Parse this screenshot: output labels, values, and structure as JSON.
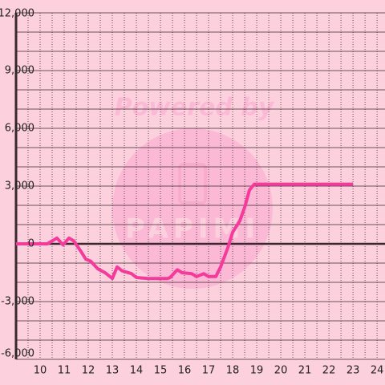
{
  "chart_data": {
    "type": "line",
    "watermark": {
      "top": "Powered by",
      "bottom": "PAPIMI"
    },
    "x": [
      9,
      10.3,
      10.7,
      10.95,
      11.2,
      11.4,
      11.7,
      11.9,
      12.1,
      12.4,
      12.7,
      13,
      13.2,
      13.4,
      13.8,
      14,
      14.5,
      15.3,
      15.4,
      15.7,
      15.9,
      16.3,
      16.5,
      16.8,
      17,
      17.3,
      17.5,
      17.8,
      18,
      18.3,
      18.5,
      18.7,
      18.9,
      19.2,
      23
    ],
    "series": [
      {
        "color": "#f53a9b",
        "values": [
          0,
          0,
          300,
          -50,
          300,
          150,
          -400,
          -800,
          -900,
          -1300,
          -1500,
          -1800,
          -1200,
          -1400,
          -1550,
          -1750,
          -1800,
          -1800,
          -1750,
          -1350,
          -1500,
          -1550,
          -1700,
          -1550,
          -1700,
          -1700,
          -1200,
          -200,
          600,
          1200,
          1900,
          2800,
          3100,
          3100,
          3100
        ]
      }
    ],
    "xlim": [
      9,
      24.33
    ],
    "xticks": [
      10,
      11,
      12,
      13,
      14,
      15,
      16,
      17,
      18,
      19,
      20,
      21,
      22,
      23,
      24
    ],
    "minor_xticks": [
      9.5,
      10.5,
      11.5,
      12.5,
      13.5,
      14.5,
      15.5,
      16.5,
      17.5,
      18.5,
      19.5,
      20.5,
      21.5,
      22.5,
      23.5
    ],
    "ylim": [
      -6000,
      12000
    ],
    "yticks": [
      {
        "value": -6000,
        "label": "-6,000"
      },
      {
        "value": -3000,
        "label": "-3,000"
      },
      0,
      {
        "value": 3000,
        "label": "3,000"
      },
      {
        "value": 6000,
        "label": "6,000"
      },
      {
        "value": 9000,
        "label": "9,000"
      },
      {
        "value": 12000,
        "label": "12,000"
      }
    ],
    "minor_yticks": [
      -5000,
      -4000,
      -2000,
      -1000,
      1000,
      2000,
      4000,
      5000,
      7000,
      8000,
      10000,
      11000
    ],
    "grid": true
  }
}
